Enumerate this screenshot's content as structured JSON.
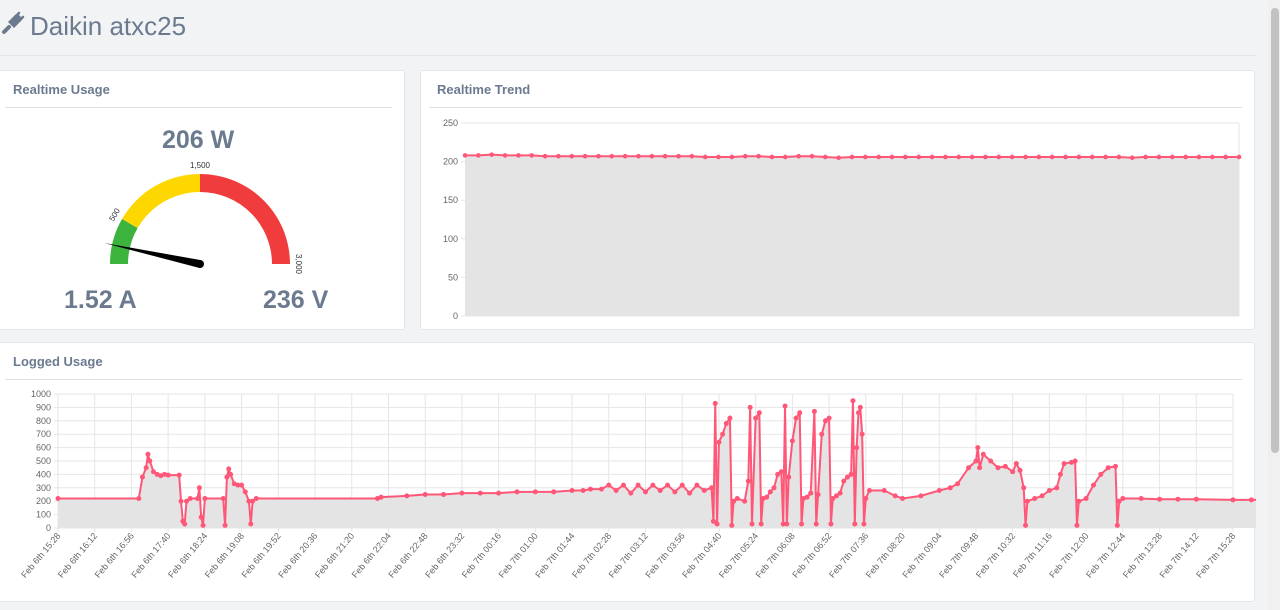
{
  "header": {
    "title": "Daikin atxc25",
    "icon": "plug-icon"
  },
  "realtime_usage": {
    "title": "Realtime Usage",
    "power": "206 W",
    "current": "1.52 A",
    "voltage": "236 V",
    "gauge": {
      "min": 0,
      "max": 3000,
      "value": 206,
      "labels": [
        "500",
        "1,500",
        "3,000"
      ],
      "bands": [
        {
          "from": 0,
          "to": 500,
          "color": "#3cb33c"
        },
        {
          "from": 500,
          "to": 1500,
          "color": "#ffd700"
        },
        {
          "from": 1500,
          "to": 3000,
          "color": "#f03c3c"
        }
      ]
    }
  },
  "realtime_trend": {
    "title": "Realtime Trend",
    "chart_data": {
      "type": "area",
      "ylim": [
        0,
        250
      ],
      "yticks": [
        "0",
        "50",
        "100",
        "150",
        "200",
        "250"
      ],
      "color": "#ff5778",
      "values": [
        208,
        208,
        209,
        208,
        208,
        208,
        207,
        207,
        207,
        207,
        207,
        207,
        207,
        207,
        207,
        207,
        207,
        207,
        206,
        206,
        206,
        207,
        207,
        206,
        206,
        207,
        207,
        206,
        205,
        206,
        206,
        206,
        206,
        206,
        206,
        206,
        206,
        206,
        206,
        206,
        206,
        206,
        206,
        206,
        206,
        206,
        206,
        206,
        206,
        206,
        205,
        206,
        206,
        206,
        206,
        206,
        206,
        206,
        206
      ]
    }
  },
  "logged_usage": {
    "title": "Logged Usage",
    "chart_data": {
      "type": "area",
      "ylim": [
        0,
        1000
      ],
      "yticks": [
        "0",
        "100",
        "200",
        "300",
        "400",
        "500",
        "600",
        "700",
        "800",
        "900",
        "1000"
      ],
      "xticks": [
        "Feb 6th 15:28",
        "Feb 6th 16:12",
        "Feb 6th 16:56",
        "Feb 6th 17:40",
        "Feb 6th 18:24",
        "Feb 6th 19:08",
        "Feb 6th 19:52",
        "Feb 6th 20:36",
        "Feb 6th 21:20",
        "Feb 6th 22:04",
        "Feb 6th 22:48",
        "Feb 6th 23:32",
        "Feb 7th 00:16",
        "Feb 7th 01:00",
        "Feb 7th 01:44",
        "Feb 7th 02:28",
        "Feb 7th 03:12",
        "Feb 7th 03:56",
        "Feb 7th 04:40",
        "Feb 7th 05:24",
        "Feb 7th 06:08",
        "Feb 7th 06:52",
        "Feb 7th 07:36",
        "Feb 7th 08:20",
        "Feb 7th 09:04",
        "Feb 7th 09:48",
        "Feb 7th 10:32",
        "Feb 7th 11:16",
        "Feb 7th 12:00",
        "Feb 7th 12:44",
        "Feb 7th 13:28",
        "Feb 7th 14:12",
        "Feb 7th 15:28"
      ],
      "color": "#ff5778",
      "series": [
        [
          0,
          220
        ],
        [
          2.2,
          220
        ],
        [
          2.3,
          380
        ],
        [
          2.4,
          450
        ],
        [
          2.45,
          550
        ],
        [
          2.5,
          500
        ],
        [
          2.6,
          420
        ],
        [
          2.7,
          400
        ],
        [
          2.8,
          390
        ],
        [
          2.9,
          400
        ],
        [
          3.0,
          395
        ],
        [
          3.3,
          395
        ],
        [
          3.35,
          200
        ],
        [
          3.4,
          50
        ],
        [
          3.45,
          30
        ],
        [
          3.5,
          200
        ],
        [
          3.6,
          220
        ],
        [
          3.8,
          220
        ],
        [
          3.85,
          300
        ],
        [
          3.9,
          80
        ],
        [
          3.95,
          20
        ],
        [
          4.0,
          220
        ],
        [
          4.5,
          220
        ],
        [
          4.55,
          20
        ],
        [
          4.6,
          380
        ],
        [
          4.65,
          440
        ],
        [
          4.7,
          400
        ],
        [
          4.8,
          330
        ],
        [
          4.9,
          320
        ],
        [
          5.0,
          320
        ],
        [
          5.1,
          270
        ],
        [
          5.2,
          200
        ],
        [
          5.25,
          30
        ],
        [
          5.3,
          200
        ],
        [
          5.4,
          220
        ],
        [
          8.7,
          220
        ],
        [
          8.8,
          230
        ],
        [
          9.5,
          240
        ],
        [
          10.0,
          250
        ],
        [
          10.5,
          250
        ],
        [
          11.0,
          260
        ],
        [
          11.5,
          260
        ],
        [
          12.0,
          260
        ],
        [
          12.5,
          270
        ],
        [
          13.0,
          270
        ],
        [
          13.5,
          270
        ],
        [
          14.0,
          280
        ],
        [
          14.3,
          280
        ],
        [
          14.5,
          290
        ],
        [
          14.8,
          290
        ],
        [
          15.0,
          320
        ],
        [
          15.2,
          280
        ],
        [
          15.4,
          320
        ],
        [
          15.6,
          260
        ],
        [
          15.8,
          320
        ],
        [
          16.0,
          270
        ],
        [
          16.2,
          320
        ],
        [
          16.4,
          280
        ],
        [
          16.6,
          320
        ],
        [
          16.8,
          270
        ],
        [
          17.0,
          320
        ],
        [
          17.2,
          260
        ],
        [
          17.4,
          320
        ],
        [
          17.6,
          280
        ],
        [
          17.8,
          300
        ],
        [
          17.85,
          50
        ],
        [
          17.9,
          930
        ],
        [
          17.95,
          30
        ],
        [
          18.0,
          640
        ],
        [
          18.1,
          700
        ],
        [
          18.2,
          780
        ],
        [
          18.3,
          820
        ],
        [
          18.35,
          20
        ],
        [
          18.4,
          200
        ],
        [
          18.5,
          220
        ],
        [
          18.7,
          200
        ],
        [
          18.8,
          350
        ],
        [
          18.85,
          900
        ],
        [
          18.9,
          30
        ],
        [
          19.0,
          820
        ],
        [
          19.1,
          860
        ],
        [
          19.15,
          30
        ],
        [
          19.2,
          220
        ],
        [
          19.3,
          230
        ],
        [
          19.4,
          270
        ],
        [
          19.5,
          300
        ],
        [
          19.6,
          400
        ],
        [
          19.7,
          420
        ],
        [
          19.75,
          30
        ],
        [
          19.8,
          910
        ],
        [
          19.85,
          30
        ],
        [
          19.9,
          380
        ],
        [
          20.0,
          650
        ],
        [
          20.1,
          820
        ],
        [
          20.2,
          860
        ],
        [
          20.25,
          30
        ],
        [
          20.3,
          220
        ],
        [
          20.4,
          230
        ],
        [
          20.5,
          260
        ],
        [
          20.6,
          870
        ],
        [
          20.65,
          30
        ],
        [
          20.7,
          250
        ],
        [
          20.8,
          700
        ],
        [
          20.9,
          800
        ],
        [
          21.0,
          820
        ],
        [
          21.05,
          30
        ],
        [
          21.1,
          220
        ],
        [
          21.2,
          240
        ],
        [
          21.3,
          260
        ],
        [
          21.4,
          350
        ],
        [
          21.5,
          380
        ],
        [
          21.6,
          400
        ],
        [
          21.65,
          950
        ],
        [
          21.7,
          30
        ],
        [
          21.75,
          600
        ],
        [
          21.8,
          860
        ],
        [
          21.85,
          900
        ],
        [
          21.9,
          700
        ],
        [
          21.95,
          30
        ],
        [
          22.0,
          220
        ],
        [
          22.1,
          280
        ],
        [
          22.5,
          280
        ],
        [
          22.8,
          240
        ],
        [
          23.0,
          220
        ],
        [
          23.5,
          240
        ],
        [
          24.0,
          280
        ],
        [
          24.3,
          300
        ],
        [
          24.5,
          330
        ],
        [
          24.8,
          450
        ],
        [
          25.0,
          500
        ],
        [
          25.05,
          600
        ],
        [
          25.1,
          450
        ],
        [
          25.2,
          550
        ],
        [
          25.4,
          500
        ],
        [
          25.6,
          450
        ],
        [
          25.8,
          460
        ],
        [
          26.0,
          420
        ],
        [
          26.1,
          480
        ],
        [
          26.2,
          430
        ],
        [
          26.3,
          300
        ],
        [
          26.35,
          20
        ],
        [
          26.4,
          200
        ],
        [
          26.6,
          220
        ],
        [
          26.8,
          240
        ],
        [
          27.0,
          280
        ],
        [
          27.2,
          300
        ],
        [
          27.3,
          400
        ],
        [
          27.4,
          480
        ],
        [
          27.6,
          490
        ],
        [
          27.7,
          500
        ],
        [
          27.75,
          20
        ],
        [
          27.8,
          200
        ],
        [
          28.0,
          220
        ],
        [
          28.2,
          320
        ],
        [
          28.4,
          400
        ],
        [
          28.6,
          450
        ],
        [
          28.8,
          460
        ],
        [
          28.85,
          20
        ],
        [
          28.9,
          200
        ],
        [
          29.0,
          220
        ],
        [
          29.5,
          220
        ],
        [
          30.0,
          215
        ],
        [
          30.5,
          215
        ],
        [
          31.0,
          215
        ],
        [
          32.0,
          210
        ],
        [
          32.5,
          210
        ],
        [
          33.0,
          210
        ]
      ]
    }
  }
}
